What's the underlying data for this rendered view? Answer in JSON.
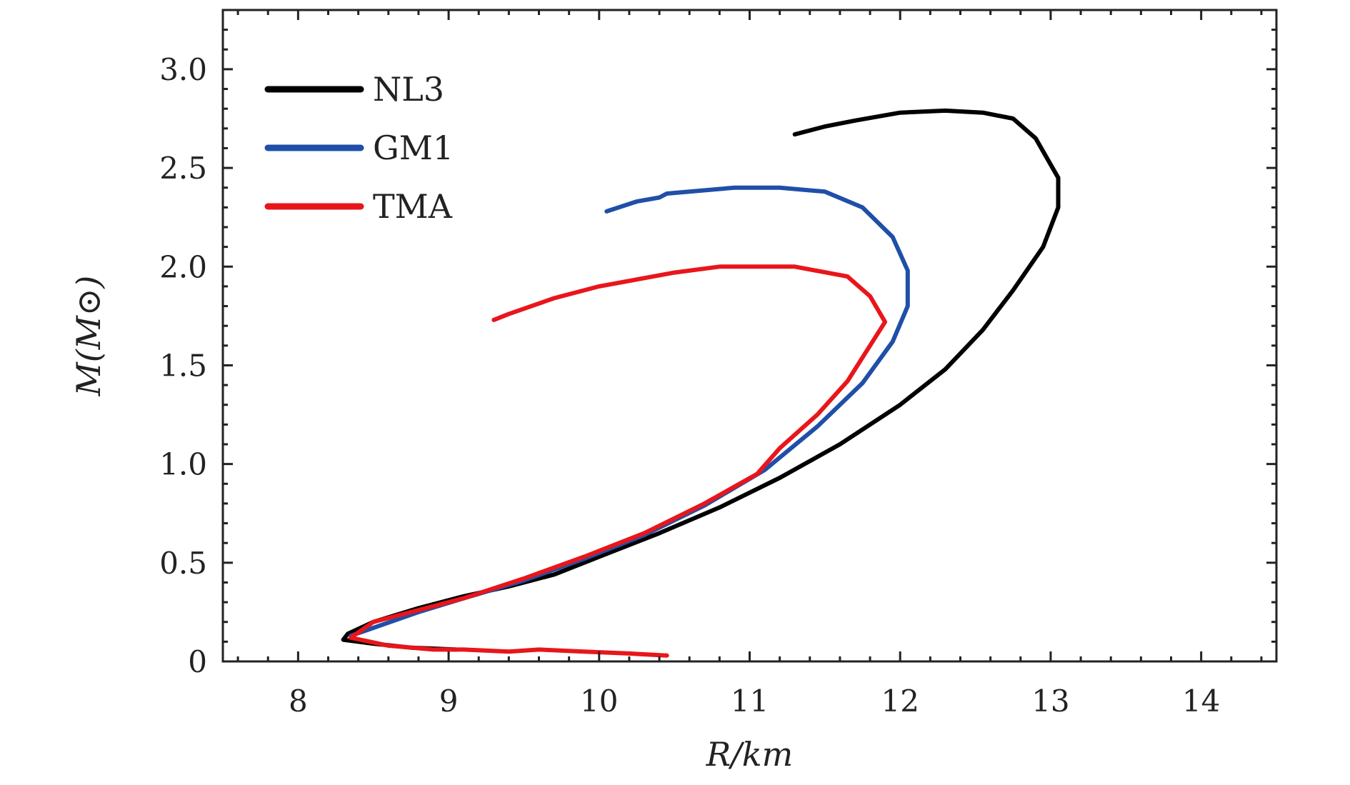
{
  "chart_data": {
    "type": "line",
    "xlabel": "R/km",
    "ylabel": "M(M⊙)",
    "xlim": [
      7.5,
      14.5
    ],
    "ylim": [
      0,
      3.3
    ],
    "x_ticks": [
      "8",
      "9",
      "10",
      "11",
      "12",
      "13",
      "14"
    ],
    "y_ticks": [
      "0",
      "0.5",
      "1.0",
      "1.5",
      "2.0",
      "2.5",
      "3.0"
    ],
    "grid": false,
    "legend_position": "top-left",
    "series": [
      {
        "name": "NL3",
        "color": "#000000",
        "points": [
          [
            9.05,
            0.06
          ],
          [
            8.75,
            0.07
          ],
          [
            8.5,
            0.09
          ],
          [
            8.3,
            0.11
          ],
          [
            8.33,
            0.14
          ],
          [
            8.5,
            0.2
          ],
          [
            8.8,
            0.27
          ],
          [
            9.1,
            0.33
          ],
          [
            9.4,
            0.38
          ],
          [
            9.7,
            0.44
          ],
          [
            10.0,
            0.53
          ],
          [
            10.4,
            0.65
          ],
          [
            10.8,
            0.78
          ],
          [
            11.2,
            0.93
          ],
          [
            11.6,
            1.1
          ],
          [
            12.0,
            1.3
          ],
          [
            12.3,
            1.48
          ],
          [
            12.55,
            1.68
          ],
          [
            12.75,
            1.88
          ],
          [
            12.95,
            2.1
          ],
          [
            13.05,
            2.3
          ],
          [
            13.05,
            2.45
          ],
          [
            12.9,
            2.65
          ],
          [
            12.75,
            2.75
          ],
          [
            12.55,
            2.78
          ],
          [
            12.3,
            2.79
          ],
          [
            12.0,
            2.78
          ],
          [
            11.7,
            2.74
          ],
          [
            11.5,
            2.71
          ],
          [
            11.3,
            2.67
          ]
        ]
      },
      {
        "name": "GM1",
        "color": "#1f4fa8",
        "points": [
          [
            8.35,
            0.13
          ],
          [
            8.5,
            0.17
          ],
          [
            8.8,
            0.25
          ],
          [
            9.1,
            0.32
          ],
          [
            9.5,
            0.41
          ],
          [
            9.9,
            0.52
          ],
          [
            10.3,
            0.64
          ],
          [
            10.7,
            0.79
          ],
          [
            11.1,
            0.97
          ],
          [
            11.45,
            1.19
          ],
          [
            11.75,
            1.41
          ],
          [
            11.95,
            1.62
          ],
          [
            12.05,
            1.8
          ],
          [
            12.05,
            1.98
          ],
          [
            11.95,
            2.15
          ],
          [
            11.75,
            2.3
          ],
          [
            11.5,
            2.38
          ],
          [
            11.2,
            2.4
          ],
          [
            10.9,
            2.4
          ],
          [
            10.6,
            2.38
          ],
          [
            10.45,
            2.37
          ],
          [
            10.4,
            2.35
          ],
          [
            10.25,
            2.33
          ],
          [
            10.05,
            2.28
          ]
        ]
      },
      {
        "name": "TMA",
        "color": "#e8161b",
        "points": [
          [
            10.45,
            0.03
          ],
          [
            10.2,
            0.04
          ],
          [
            9.9,
            0.05
          ],
          [
            9.6,
            0.06
          ],
          [
            9.4,
            0.05
          ],
          [
            9.1,
            0.06
          ],
          [
            8.9,
            0.06
          ],
          [
            8.6,
            0.08
          ],
          [
            8.35,
            0.12
          ],
          [
            8.5,
            0.2
          ],
          [
            8.8,
            0.26
          ],
          [
            9.1,
            0.32
          ],
          [
            9.5,
            0.42
          ],
          [
            9.9,
            0.53
          ],
          [
            10.3,
            0.65
          ],
          [
            10.7,
            0.8
          ],
          [
            11.05,
            0.95
          ],
          [
            11.2,
            1.08
          ],
          [
            11.45,
            1.25
          ],
          [
            11.65,
            1.42
          ],
          [
            11.9,
            1.72
          ],
          [
            11.8,
            1.85
          ],
          [
            11.65,
            1.95
          ],
          [
            11.3,
            2.0
          ],
          [
            10.8,
            2.0
          ],
          [
            10.5,
            1.97
          ],
          [
            10.0,
            1.9
          ],
          [
            9.7,
            1.84
          ],
          [
            9.4,
            1.76
          ],
          [
            9.3,
            1.73
          ]
        ]
      }
    ]
  }
}
